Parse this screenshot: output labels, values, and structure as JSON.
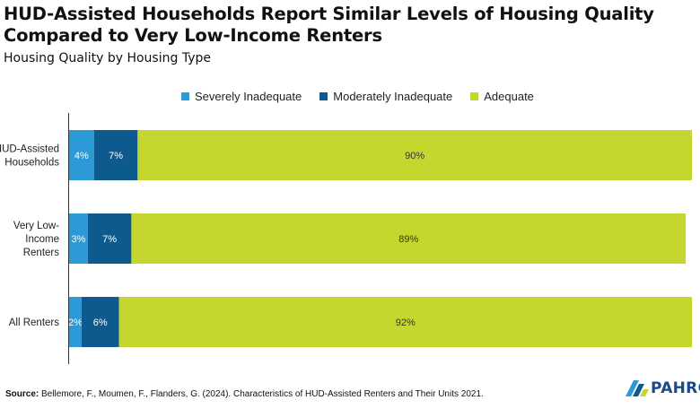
{
  "header": {
    "title": "HUD-Assisted Households Report Similar Levels of Housing Quality Compared to Very Low-Income Renters",
    "subtitle": "Housing Quality by Housing Type"
  },
  "colors": {
    "severely": "#2b9ad6",
    "moderately": "#0c5a8e",
    "adequate": "#c5d72e",
    "axis": "#333333"
  },
  "footer": {
    "source_label": "Source:",
    "source_text": "Bellemore, F., Moumen, F., Flanders, G. (2024). Characteristics of HUD-Assisted Renters and Their Units 2021."
  },
  "logo": {
    "text": "PAHRC"
  },
  "chart_data": {
    "type": "bar",
    "orientation": "horizontal",
    "stacked": true,
    "percent_stacked": true,
    "categories": [
      "HUD-Assisted Households",
      "Very Low-Income Renters",
      "All Renters"
    ],
    "category_lines": [
      [
        "HUD-Assisted",
        "Households"
      ],
      [
        "Very Low-",
        "Income",
        "Renters"
      ],
      [
        "All Renters"
      ]
    ],
    "series": [
      {
        "name": "Severely Inadequate",
        "values": [
          4,
          3,
          2
        ],
        "labels": [
          "4%",
          "3%",
          "2%"
        ]
      },
      {
        "name": "Moderately Inadequate",
        "values": [
          7,
          7,
          6
        ],
        "labels": [
          "7%",
          "7%",
          "6%"
        ]
      },
      {
        "name": "Adequate",
        "values": [
          90,
          89,
          92
        ],
        "labels": [
          "90%",
          "89%",
          "92%"
        ]
      }
    ],
    "xlim": [
      0,
      100
    ],
    "legend_position": "top",
    "grid": false
  }
}
